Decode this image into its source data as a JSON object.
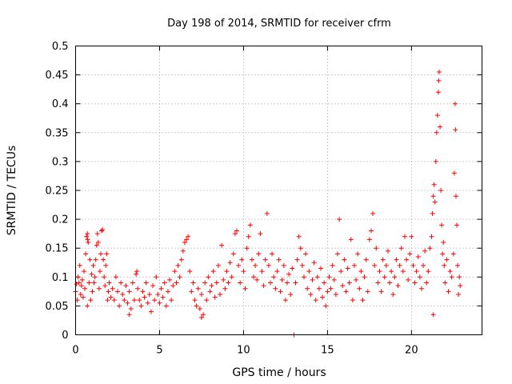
{
  "chart_data": {
    "type": "scatter",
    "title": "Day 198 of 2014, SRMTID for receiver cfrm",
    "xlabel": "GPS time / hours",
    "ylabel": "SRMTID / TECUs",
    "xlim": [
      0,
      24.2
    ],
    "ylim": [
      0,
      0.5
    ],
    "xticks": [
      0,
      5,
      10,
      15,
      20
    ],
    "xtick_labels": [
      "0",
      "5",
      "10",
      "15",
      "20"
    ],
    "yticks": [
      0,
      0.05,
      0.1,
      0.15,
      0.2,
      0.25,
      0.3,
      0.35,
      0.4,
      0.45,
      0.5
    ],
    "ytick_labels": [
      "0",
      "0.05",
      "0.1",
      "0.15",
      "0.2",
      "0.25",
      "0.3",
      "0.35",
      "0.4",
      "0.45",
      "0.5"
    ],
    "grid": true,
    "marker": "+",
    "color": "#ff0000",
    "series": [
      {
        "name": "SRMTID",
        "points": [
          [
            0.0,
            0.075
          ],
          [
            0.05,
            0.088
          ],
          [
            0.1,
            0.06
          ],
          [
            0.15,
            0.1
          ],
          [
            0.2,
            0.09
          ],
          [
            0.25,
            0.12
          ],
          [
            0.3,
            0.07
          ],
          [
            0.35,
            0.085
          ],
          [
            0.4,
            0.095
          ],
          [
            0.45,
            0.065
          ],
          [
            0.5,
            0.11
          ],
          [
            0.55,
            0.08
          ],
          [
            0.6,
            0.14
          ],
          [
            0.65,
            0.17
          ],
          [
            0.7,
            0.175
          ],
          [
            0.72,
            0.165
          ],
          [
            0.75,
            0.16
          ],
          [
            0.8,
            0.09
          ],
          [
            0.85,
            0.13
          ],
          [
            0.9,
            0.06
          ],
          [
            0.95,
            0.105
          ],
          [
            1.0,
            0.075
          ],
          [
            1.05,
            0.12
          ],
          [
            1.1,
            0.09
          ],
          [
            1.15,
            0.1
          ],
          [
            1.2,
            0.13
          ],
          [
            1.25,
            0.155
          ],
          [
            1.3,
            0.175
          ],
          [
            1.35,
            0.16
          ],
          [
            1.4,
            0.08
          ],
          [
            1.45,
            0.11
          ],
          [
            1.5,
            0.14
          ],
          [
            1.55,
            0.18
          ],
          [
            1.6,
            0.182
          ],
          [
            1.65,
            0.13
          ],
          [
            1.7,
            0.1
          ],
          [
            1.75,
            0.085
          ],
          [
            1.8,
            0.12
          ],
          [
            1.85,
            0.14
          ],
          [
            1.9,
            0.06
          ],
          [
            1.95,
            0.075
          ],
          [
            2.0,
            0.09
          ],
          [
            2.1,
            0.065
          ],
          [
            2.2,
            0.08
          ],
          [
            2.3,
            0.06
          ],
          [
            2.4,
            0.1
          ],
          [
            2.5,
            0.075
          ],
          [
            2.6,
            0.05
          ],
          [
            2.7,
            0.09
          ],
          [
            2.8,
            0.07
          ],
          [
            2.9,
            0.06
          ],
          [
            3.0,
            0.085
          ],
          [
            3.1,
            0.055
          ],
          [
            3.2,
            0.075
          ],
          [
            3.3,
            0.045
          ],
          [
            3.4,
            0.09
          ],
          [
            3.5,
            0.06
          ],
          [
            3.6,
            0.105
          ],
          [
            3.65,
            0.11
          ],
          [
            3.7,
            0.08
          ],
          [
            3.8,
            0.06
          ],
          [
            3.9,
            0.05
          ],
          [
            4.0,
            0.075
          ],
          [
            4.1,
            0.065
          ],
          [
            4.2,
            0.09
          ],
          [
            4.3,
            0.055
          ],
          [
            4.4,
            0.07
          ],
          [
            4.5,
            0.04
          ],
          [
            4.6,
            0.085
          ],
          [
            4.7,
            0.06
          ],
          [
            4.8,
            0.1
          ],
          [
            4.9,
            0.07
          ],
          [
            5.0,
            0.055
          ],
          [
            5.1,
            0.08
          ],
          [
            5.2,
            0.065
          ],
          [
            5.3,
            0.09
          ],
          [
            5.4,
            0.05
          ],
          [
            5.5,
            0.075
          ],
          [
            5.6,
            0.095
          ],
          [
            5.7,
            0.06
          ],
          [
            5.8,
            0.085
          ],
          [
            5.9,
            0.11
          ],
          [
            6.0,
            0.09
          ],
          [
            6.1,
            0.12
          ],
          [
            6.2,
            0.1
          ],
          [
            6.3,
            0.13
          ],
          [
            6.4,
            0.145
          ],
          [
            6.5,
            0.16
          ],
          [
            6.6,
            0.165
          ],
          [
            6.7,
            0.17
          ],
          [
            6.8,
            0.11
          ],
          [
            6.9,
            0.075
          ],
          [
            7.0,
            0.09
          ],
          [
            7.1,
            0.06
          ],
          [
            7.2,
            0.05
          ],
          [
            7.3,
            0.08
          ],
          [
            7.4,
            0.045
          ],
          [
            7.5,
            0.07
          ],
          [
            7.6,
            0.035
          ],
          [
            7.7,
            0.09
          ],
          [
            7.8,
            0.06
          ],
          [
            7.9,
            0.1
          ],
          [
            8.0,
            0.075
          ],
          [
            8.1,
            0.085
          ],
          [
            8.2,
            0.11
          ],
          [
            8.3,
            0.065
          ],
          [
            8.4,
            0.09
          ],
          [
            8.5,
            0.12
          ],
          [
            8.6,
            0.07
          ],
          [
            8.7,
            0.155
          ],
          [
            8.8,
            0.095
          ],
          [
            8.9,
            0.08
          ],
          [
            9.0,
            0.11
          ],
          [
            9.1,
            0.09
          ],
          [
            9.2,
            0.125
          ],
          [
            9.3,
            0.1
          ],
          [
            9.4,
            0.14
          ],
          [
            9.5,
            0.175
          ],
          [
            9.6,
            0.18
          ],
          [
            9.7,
            0.12
          ],
          [
            9.8,
            0.09
          ],
          [
            9.9,
            0.13
          ],
          [
            10.0,
            0.11
          ],
          [
            10.1,
            0.08
          ],
          [
            10.2,
            0.15
          ],
          [
            10.3,
            0.17
          ],
          [
            10.4,
            0.19
          ],
          [
            10.5,
            0.13
          ],
          [
            10.6,
            0.1
          ],
          [
            10.7,
            0.12
          ],
          [
            10.8,
            0.095
          ],
          [
            10.9,
            0.14
          ],
          [
            11.0,
            0.175
          ],
          [
            11.1,
            0.11
          ],
          [
            11.2,
            0.085
          ],
          [
            11.3,
            0.13
          ],
          [
            11.4,
            0.21
          ],
          [
            11.5,
            0.12
          ],
          [
            11.6,
            0.09
          ],
          [
            11.7,
            0.14
          ],
          [
            11.8,
            0.1
          ],
          [
            11.9,
            0.08
          ],
          [
            12.0,
            0.11
          ],
          [
            12.1,
            0.13
          ],
          [
            12.2,
            0.075
          ],
          [
            12.3,
            0.095
          ],
          [
            12.4,
            0.12
          ],
          [
            12.5,
            0.06
          ],
          [
            12.6,
            0.09
          ],
          [
            12.7,
            0.105
          ],
          [
            12.8,
            0.07
          ],
          [
            12.9,
            0.115
          ],
          [
            13.0,
            0.0
          ],
          [
            13.1,
            0.09
          ],
          [
            13.2,
            0.13
          ],
          [
            13.3,
            0.17
          ],
          [
            13.4,
            0.15
          ],
          [
            13.5,
            0.12
          ],
          [
            13.6,
            0.1
          ],
          [
            13.7,
            0.14
          ],
          [
            13.8,
            0.08
          ],
          [
            13.9,
            0.11
          ],
          [
            14.0,
            0.07
          ],
          [
            14.1,
            0.095
          ],
          [
            14.2,
            0.125
          ],
          [
            14.3,
            0.06
          ],
          [
            14.4,
            0.1
          ],
          [
            14.5,
            0.08
          ],
          [
            14.6,
            0.115
          ],
          [
            14.7,
            0.065
          ],
          [
            14.8,
            0.09
          ],
          [
            14.9,
            0.05
          ],
          [
            15.0,
            0.075
          ],
          [
            15.1,
            0.1
          ],
          [
            15.2,
            0.08
          ],
          [
            15.3,
            0.12
          ],
          [
            15.4,
            0.095
          ],
          [
            15.5,
            0.07
          ],
          [
            15.6,
            0.14
          ],
          [
            15.7,
            0.2
          ],
          [
            15.8,
            0.11
          ],
          [
            15.9,
            0.085
          ],
          [
            16.0,
            0.13
          ],
          [
            16.1,
            0.075
          ],
          [
            16.2,
            0.115
          ],
          [
            16.3,
            0.09
          ],
          [
            16.4,
            0.165
          ],
          [
            16.5,
            0.06
          ],
          [
            16.6,
            0.12
          ],
          [
            16.7,
            0.095
          ],
          [
            16.8,
            0.14
          ],
          [
            16.9,
            0.08
          ],
          [
            17.0,
            0.11
          ],
          [
            17.1,
            0.06
          ],
          [
            17.2,
            0.1
          ],
          [
            17.3,
            0.13
          ],
          [
            17.4,
            0.075
          ],
          [
            17.5,
            0.165
          ],
          [
            17.6,
            0.18
          ],
          [
            17.7,
            0.21
          ],
          [
            17.8,
            0.12
          ],
          [
            17.9,
            0.15
          ],
          [
            18.0,
            0.09
          ],
          [
            18.1,
            0.11
          ],
          [
            18.2,
            0.075
          ],
          [
            18.3,
            0.13
          ],
          [
            18.4,
            0.1
          ],
          [
            18.5,
            0.12
          ],
          [
            18.6,
            0.145
          ],
          [
            18.7,
            0.09
          ],
          [
            18.8,
            0.11
          ],
          [
            18.9,
            0.07
          ],
          [
            19.0,
            0.1
          ],
          [
            19.1,
            0.13
          ],
          [
            19.2,
            0.085
          ],
          [
            19.3,
            0.12
          ],
          [
            19.4,
            0.15
          ],
          [
            19.5,
            0.11
          ],
          [
            19.6,
            0.17
          ],
          [
            19.7,
            0.13
          ],
          [
            19.8,
            0.095
          ],
          [
            19.9,
            0.14
          ],
          [
            20.0,
            0.17
          ],
          [
            20.1,
            0.12
          ],
          [
            20.2,
            0.09
          ],
          [
            20.3,
            0.11
          ],
          [
            20.4,
            0.135
          ],
          [
            20.5,
            0.1
          ],
          [
            20.6,
            0.08
          ],
          [
            20.7,
            0.12
          ],
          [
            20.8,
            0.145
          ],
          [
            20.9,
            0.09
          ],
          [
            21.0,
            0.11
          ],
          [
            21.1,
            0.15
          ],
          [
            21.2,
            0.17
          ],
          [
            21.25,
            0.21
          ],
          [
            21.3,
            0.24
          ],
          [
            21.35,
            0.26
          ],
          [
            21.4,
            0.23
          ],
          [
            21.45,
            0.3
          ],
          [
            21.5,
            0.35
          ],
          [
            21.55,
            0.38
          ],
          [
            21.6,
            0.42
          ],
          [
            21.62,
            0.44
          ],
          [
            21.65,
            0.455
          ],
          [
            21.7,
            0.36
          ],
          [
            21.75,
            0.25
          ],
          [
            21.8,
            0.19
          ],
          [
            21.85,
            0.14
          ],
          [
            21.9,
            0.16
          ],
          [
            21.95,
            0.12
          ],
          [
            22.0,
            0.09
          ],
          [
            22.1,
            0.13
          ],
          [
            22.2,
            0.075
          ],
          [
            22.3,
            0.11
          ],
          [
            22.4,
            0.1
          ],
          [
            22.5,
            0.14
          ],
          [
            22.55,
            0.28
          ],
          [
            22.6,
            0.4
          ],
          [
            22.62,
            0.355
          ],
          [
            22.65,
            0.24
          ],
          [
            22.7,
            0.19
          ],
          [
            22.75,
            0.12
          ],
          [
            22.8,
            0.07
          ],
          [
            22.85,
            0.1
          ],
          [
            22.9,
            0.085
          ],
          [
            21.3,
            0.035
          ],
          [
            0.7,
            0.05
          ],
          [
            3.2,
            0.035
          ],
          [
            7.5,
            0.03
          ]
        ]
      }
    ]
  }
}
